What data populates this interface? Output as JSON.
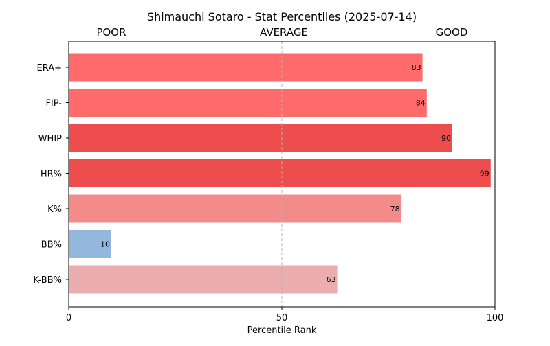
{
  "chart_data": {
    "type": "bar",
    "orientation": "horizontal",
    "title": "Shimauchi Sotaro - Stat Percentiles (2025-07-14)",
    "xlabel": "Percentile Rank",
    "ylabel": "",
    "xlim": [
      0,
      100
    ],
    "xticks": [
      0,
      50,
      100
    ],
    "zone_labels": [
      "POOR",
      "AVERAGE",
      "GOOD"
    ],
    "reference_line": 50,
    "grid": false,
    "categories": [
      "ERA+",
      "FIP-",
      "WHIP",
      "HR%",
      "K%",
      "BB%",
      "K-BB%"
    ],
    "values": [
      83,
      84,
      90,
      99,
      78,
      10,
      63
    ],
    "bar_colors": [
      "#ff6b6b",
      "#ff6b6b",
      "#ee4d4d",
      "#ee4d4d",
      "#f48b8b",
      "#94b8dd",
      "#ebadad"
    ]
  }
}
